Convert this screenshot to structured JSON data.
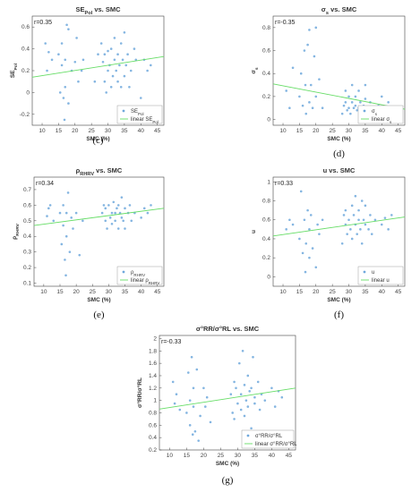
{
  "chart_data": [
    {
      "id": "c",
      "type": "scatter",
      "title": "SE_Pol vs. SMC",
      "title_main": "SE",
      "title_sub": "Pol",
      "title_rest": " vs. SMC",
      "xlabel": "SMC (%)",
      "ylabel_main": "SE",
      "ylabel_sub": "Pol",
      "r_label": "r=0.35",
      "caption": "(c)",
      "xlim": [
        7,
        47
      ],
      "ylim": [
        -0.3,
        0.7
      ],
      "xticks": [
        10,
        15,
        20,
        25,
        30,
        35,
        40,
        45
      ],
      "yticks": [
        -0.2,
        0,
        0.2,
        0.4,
        0.6
      ],
      "legend": [
        "SE_Pol",
        "linear SE_Pol"
      ],
      "legend_position": "bottom-right",
      "series": [
        {
          "legend_main": "SE",
          "legend_sub": "Pol",
          "kind": "points",
          "x": [
            11,
            11.5,
            12,
            13,
            15,
            15.5,
            16,
            16,
            16.5,
            16.8,
            17,
            17,
            17.5,
            18,
            18,
            19,
            20,
            20.5,
            21,
            22,
            22.5,
            26,
            27,
            28,
            28.5,
            29,
            29,
            29.5,
            30,
            30,
            30.5,
            31,
            31,
            31.5,
            32,
            32,
            32.5,
            33,
            33,
            33.5,
            34,
            34,
            34.5,
            35,
            35,
            35.5,
            36,
            36.5,
            37,
            38,
            38.5,
            40,
            41,
            42,
            43
          ],
          "y": [
            0.45,
            0.2,
            0.37,
            0.3,
            0.35,
            0.0,
            0.25,
            0.45,
            -0.05,
            -0.25,
            0.3,
            0.05,
            0.62,
            -0.1,
            0.58,
            0.2,
            0.28,
            0.5,
            0.1,
            0.2,
            0.3,
            0.1,
            0.35,
            0.45,
            0.28,
            0.1,
            0.35,
            0.0,
            0.2,
            0.38,
            0.25,
            0.05,
            0.4,
            0.15,
            0.3,
            0.5,
            0.2,
            0.1,
            0.35,
            0.25,
            0.05,
            0.45,
            0.3,
            0.15,
            0.55,
            0.25,
            0.35,
            0.05,
            0.2,
            0.4,
            0.3,
            -0.05,
            0.3,
            0.2,
            0.25
          ]
        },
        {
          "legend_main": "linear SE",
          "legend_sub": "Pol",
          "kind": "line",
          "x": [
            7,
            47
          ],
          "y": [
            0.14,
            0.33
          ]
        }
      ]
    },
    {
      "id": "d",
      "type": "scatter",
      "title": "σ_s vs. SMC",
      "title_main": "σ",
      "title_sub": "s",
      "title_rest": " vs. SMC",
      "xlabel": "SMC (%)",
      "ylabel_main": "σ",
      "ylabel_sub": "s",
      "r_label": "r=-0.35",
      "caption": "(d)",
      "xlim": [
        7,
        47
      ],
      "ylim": [
        -0.05,
        0.9
      ],
      "xticks": [
        10,
        15,
        20,
        25,
        30,
        35,
        40,
        45
      ],
      "yticks": [
        0,
        0.2,
        0.4,
        0.6,
        0.8
      ],
      "legend": [
        "σ_s",
        "linear σ_s"
      ],
      "legend_position": "bottom-right",
      "series": [
        {
          "legend_main": "σ",
          "legend_sub": "s",
          "kind": "points",
          "x": [
            11,
            12,
            13,
            15,
            15.5,
            16,
            16.5,
            16.8,
            17,
            17.5,
            18,
            18,
            18.5,
            19,
            19.5,
            20,
            20,
            21,
            22,
            28,
            28.5,
            29,
            29,
            29.5,
            30,
            30,
            30.5,
            31,
            31,
            31.5,
            32,
            32,
            32.5,
            33,
            33,
            33.5,
            34,
            34.5,
            35,
            35,
            36,
            36.5,
            37,
            38,
            39,
            40,
            41,
            42,
            43
          ],
          "y": [
            0.25,
            0.1,
            0.45,
            0.2,
            0.4,
            0.12,
            0.6,
            0.3,
            0.05,
            0.65,
            0.15,
            0.78,
            0.3,
            0.1,
            0.55,
            0.2,
            0.8,
            0.35,
            0.1,
            0.05,
            0.12,
            0.15,
            0.25,
            0.08,
            0.1,
            0.2,
            0.05,
            0.15,
            0.3,
            0.1,
            0.12,
            0.2,
            0.08,
            0.25,
            0.1,
            0.15,
            0.05,
            0.12,
            0.18,
            0.3,
            0.08,
            0.15,
            0.1,
            0.05,
            0.12,
            0.2,
            0.08,
            0.15,
            0.1
          ]
        },
        {
          "legend_main": "linear σ",
          "legend_sub": "s",
          "kind": "line",
          "x": [
            7,
            47
          ],
          "y": [
            0.31,
            0.09
          ]
        }
      ]
    },
    {
      "id": "e",
      "type": "scatter",
      "title": "ρ_RHRV vs. SMC",
      "title_main": "ρ",
      "title_sub": "RHRV",
      "title_rest": " vs. SMC",
      "xlabel": "SMC (%)",
      "ylabel_main": "ρ",
      "ylabel_sub": "RHRV",
      "r_label": "r=0.34",
      "caption": "(e)",
      "xlim": [
        7,
        47
      ],
      "ylim": [
        0.08,
        0.78
      ],
      "xticks": [
        10,
        15,
        20,
        25,
        30,
        35,
        40,
        45
      ],
      "yticks": [
        0.1,
        0.2,
        0.3,
        0.4,
        0.5,
        0.6,
        0.7
      ],
      "legend": [
        "ρ_RHRV",
        "linear ρ_RHRV"
      ],
      "legend_position": "bottom-right",
      "series": [
        {
          "legend_main": "ρ",
          "legend_sub": "RHRV",
          "kind": "points",
          "x": [
            11,
            11.5,
            12,
            13,
            15,
            15.5,
            16,
            16,
            16.5,
            16.8,
            17,
            17,
            17.5,
            18,
            18.5,
            19,
            20,
            21,
            22,
            28,
            28.5,
            29,
            29,
            29.5,
            30,
            30.5,
            31,
            31,
            31.5,
            32,
            32,
            32.5,
            33,
            33,
            33.5,
            34,
            34,
            34.5,
            35,
            35,
            36,
            36.5,
            37,
            38,
            40,
            41,
            42,
            43
          ],
          "y": [
            0.53,
            0.58,
            0.6,
            0.5,
            0.55,
            0.35,
            0.47,
            0.6,
            0.25,
            0.15,
            0.55,
            0.4,
            0.68,
            0.3,
            0.52,
            0.45,
            0.55,
            0.28,
            0.5,
            0.55,
            0.6,
            0.5,
            0.58,
            0.45,
            0.6,
            0.52,
            0.55,
            0.48,
            0.62,
            0.55,
            0.5,
            0.58,
            0.45,
            0.6,
            0.55,
            0.52,
            0.65,
            0.5,
            0.58,
            0.45,
            0.55,
            0.6,
            0.5,
            0.55,
            0.52,
            0.58,
            0.55,
            0.6
          ]
        },
        {
          "legend_main": "linear ρ",
          "legend_sub": "RHRV",
          "kind": "line",
          "x": [
            7,
            47
          ],
          "y": [
            0.47,
            0.58
          ]
        }
      ]
    },
    {
      "id": "f",
      "type": "scatter",
      "title": "u vs. SMC",
      "xlabel": "SMC (%)",
      "ylabel_main": "u",
      "ylabel_sub": "",
      "r_label": "r=0.33",
      "caption": "(f)",
      "xlim": [
        7,
        47
      ],
      "ylim": [
        -0.1,
        1.05
      ],
      "xticks": [
        10,
        15,
        20,
        25,
        30,
        35,
        40,
        45
      ],
      "yticks": [
        0,
        0.2,
        0.4,
        0.6,
        0.8,
        1
      ],
      "legend": [
        "u",
        "linear u"
      ],
      "legend_position": "bottom-right",
      "series": [
        {
          "legend_main": "u",
          "legend_sub": "",
          "kind": "points",
          "x": [
            11,
            12,
            13,
            15,
            15.5,
            16,
            16.5,
            16.8,
            17,
            17.5,
            18,
            18,
            18.5,
            19,
            20,
            20.5,
            21,
            22,
            28,
            28.5,
            29,
            29,
            29.5,
            30,
            30.5,
            31,
            31,
            31.5,
            32,
            32,
            32.5,
            33,
            33,
            33.5,
            34,
            34,
            34.5,
            35,
            35,
            36,
            36.5,
            37,
            38,
            40,
            41,
            42,
            43
          ],
          "y": [
            0.5,
            0.6,
            0.55,
            0.4,
            0.9,
            0.25,
            0.6,
            0.05,
            0.35,
            0.7,
            0.2,
            0.5,
            0.65,
            0.3,
            0.1,
            0.55,
            0.45,
            0.6,
            0.35,
            0.65,
            0.55,
            0.7,
            0.45,
            0.6,
            0.5,
            0.75,
            0.4,
            0.65,
            0.55,
            0.85,
            0.45,
            0.6,
            0.7,
            0.5,
            0.8,
            0.35,
            0.6,
            0.55,
            0.75,
            0.5,
            0.65,
            0.45,
            0.6,
            0.55,
            0.62,
            0.5,
            0.65
          ]
        },
        {
          "legend_main": "linear u",
          "legend_sub": "",
          "kind": "line",
          "x": [
            7,
            47
          ],
          "y": [
            0.43,
            0.63
          ]
        }
      ]
    },
    {
      "id": "g",
      "type": "scatter",
      "title": "σ°RR/σ°RL vs. SMC",
      "xlabel": "SMC (%)",
      "ylabel_main": "σ°RR/σ°RL",
      "ylabel_sub": "",
      "r_label": "r=-0.33",
      "caption": "(g)",
      "xlim": [
        7,
        47
      ],
      "ylim": [
        0.2,
        2.05
      ],
      "xticks": [
        10,
        15,
        20,
        25,
        30,
        35,
        40,
        45
      ],
      "yticks": [
        0.2,
        0.4,
        0.6,
        0.8,
        1,
        1.2,
        1.4,
        1.6,
        1.8,
        2
      ],
      "legend": [
        "σ°RR/σ°RL",
        "linear σ°RR/σ°RL"
      ],
      "legend_position": "bottom-right",
      "series": [
        {
          "legend_main": "σ°RR/σ°RL",
          "legend_sub": "",
          "kind": "points",
          "x": [
            11,
            11.5,
            12,
            13,
            15,
            15.5,
            16,
            16,
            16.5,
            16.8,
            17,
            17,
            17.5,
            18,
            18.5,
            19,
            20,
            20.5,
            21,
            22,
            28,
            28.5,
            29,
            29,
            29.5,
            30,
            30.5,
            31,
            31,
            31.5,
            32,
            32,
            32.5,
            33,
            33,
            33.5,
            34,
            34,
            34.5,
            35,
            35,
            36,
            36.5,
            37,
            38,
            40,
            41,
            42,
            43
          ],
          "y": [
            1.3,
            0.95,
            1.1,
            0.85,
            0.8,
            1.45,
            0.6,
            1.0,
            1.7,
            0.45,
            0.9,
            1.2,
            0.5,
            1.5,
            0.35,
            0.75,
            1.2,
            0.9,
            1.05,
            0.65,
            1.1,
            0.8,
            1.3,
            0.7,
            1.2,
            0.95,
            1.6,
            0.85,
            1.1,
            1.8,
            0.75,
            1.25,
            1.0,
            1.4,
            0.9,
            1.15,
            0.55,
            1.2,
            1.7,
            0.95,
            1.05,
            1.3,
            0.85,
            1.1,
            1.0,
            1.2,
            0.9,
            1.15,
            1.05
          ]
        },
        {
          "legend_main": "linear σ°RR/σ°RL",
          "legend_sub": "",
          "kind": "line",
          "x": [
            7,
            47
          ],
          "y": [
            0.86,
            1.2
          ]
        }
      ]
    }
  ],
  "colors": {
    "points": "#6fa8dc",
    "fit_line": "#66dd66",
    "axis": "#444444",
    "grid": "#f0f0f0"
  }
}
